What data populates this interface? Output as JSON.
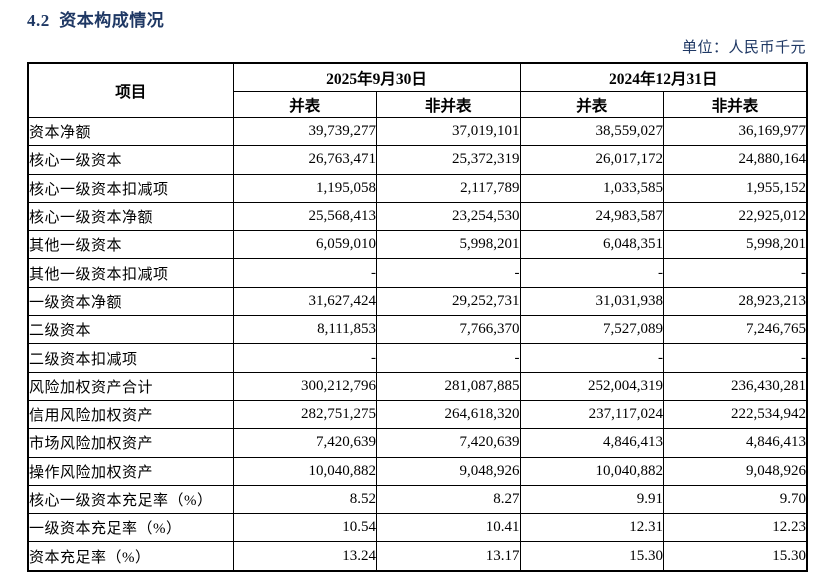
{
  "page": {
    "title": "4.2  资本构成情况",
    "unit_label": "单位：人民币千元"
  },
  "table": {
    "item_header": "项目",
    "period_headers": [
      "2025年9月30日",
      "2024年12月31日"
    ],
    "sub_headers": [
      "并表",
      "非并表",
      "并表",
      "非并表"
    ],
    "rows": [
      {
        "label": "资本净额",
        "values": [
          "39,739,277",
          "37,019,101",
          "38,559,027",
          "36,169,977"
        ]
      },
      {
        "label": "核心一级资本",
        "values": [
          "26,763,471",
          "25,372,319",
          "26,017,172",
          "24,880,164"
        ]
      },
      {
        "label": "核心一级资本扣减项",
        "values": [
          "1,195,058",
          "2,117,789",
          "1,033,585",
          "1,955,152"
        ]
      },
      {
        "label": "核心一级资本净额",
        "values": [
          "25,568,413",
          "23,254,530",
          "24,983,587",
          "22,925,012"
        ]
      },
      {
        "label": "其他一级资本",
        "values": [
          "6,059,010",
          "5,998,201",
          "6,048,351",
          "5,998,201"
        ]
      },
      {
        "label": "其他一级资本扣减项",
        "values": [
          "-",
          "-",
          "-",
          "-"
        ]
      },
      {
        "label": "一级资本净额",
        "values": [
          "31,627,424",
          "29,252,731",
          "31,031,938",
          "28,923,213"
        ]
      },
      {
        "label": "二级资本",
        "values": [
          "8,111,853",
          "7,766,370",
          "7,527,089",
          "7,246,765"
        ]
      },
      {
        "label": "二级资本扣减项",
        "values": [
          "-",
          "-",
          "-",
          "-"
        ]
      },
      {
        "label": "风险加权资产合计",
        "values": [
          "300,212,796",
          "281,087,885",
          "252,004,319",
          "236,430,281"
        ]
      },
      {
        "label": "信用风险加权资产",
        "values": [
          "282,751,275",
          "264,618,320",
          "237,117,024",
          "222,534,942"
        ]
      },
      {
        "label": "市场风险加权资产",
        "values": [
          "7,420,639",
          "7,420,639",
          "4,846,413",
          "4,846,413"
        ]
      },
      {
        "label": "操作风险加权资产",
        "values": [
          "10,040,882",
          "9,048,926",
          "10,040,882",
          "9,048,926"
        ]
      },
      {
        "label": "核心一级资本充足率（%）",
        "values": [
          "8.52",
          "8.27",
          "9.91",
          "9.70"
        ]
      },
      {
        "label": "一级资本充足率（%）",
        "values": [
          "10.54",
          "10.41",
          "12.31",
          "12.23"
        ]
      },
      {
        "label": "资本充足率（%）",
        "values": [
          "13.24",
          "13.17",
          "15.30",
          "15.30"
        ]
      }
    ]
  }
}
